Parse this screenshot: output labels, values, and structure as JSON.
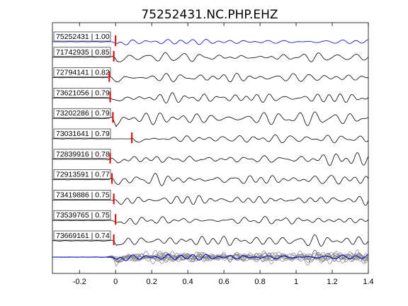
{
  "chart_data": {
    "type": "line",
    "title": "75252431.NC.PHP.EHZ",
    "xlabel": "",
    "ylabel": "",
    "xlim": [
      -0.35,
      1.4
    ],
    "xticks": [
      -0.2,
      0,
      0.2,
      0.4,
      0.6,
      0.8,
      1,
      1.2,
      1.4
    ],
    "xtick_labels": [
      "-0.2",
      "0",
      "0.2",
      "0.4",
      "0.6",
      "0.8",
      "1",
      "1.2",
      "1.4"
    ],
    "grid": false,
    "pick_color": "#dd0000",
    "reference_color": "#0000cc",
    "trace_color": "#000000",
    "stack_color": "#808080",
    "traces": [
      {
        "label": "75252431 | 1.00",
        "id": "75252431",
        "corr": 1.0,
        "pick": 0.0,
        "reference": true
      },
      {
        "label": "71742935 | 0.85",
        "id": "71742935",
        "corr": 0.85,
        "pick": -0.01
      },
      {
        "label": "72794141 | 0.82",
        "id": "72794141",
        "corr": 0.82,
        "pick": -0.035
      },
      {
        "label": "73621056 | 0.79",
        "id": "73621056",
        "corr": 0.79,
        "pick": -0.03
      },
      {
        "label": "73202286 | 0.79",
        "id": "73202286",
        "corr": 0.79,
        "pick": -0.015
      },
      {
        "label": "73031641 | 0.79",
        "id": "73031641",
        "corr": 0.79,
        "pick": 0.09
      },
      {
        "label": "72839916 | 0.78",
        "id": "72839916",
        "corr": 0.78,
        "pick": -0.03
      },
      {
        "label": "72913591 | 0.77",
        "id": "72913591",
        "corr": 0.77,
        "pick": -0.02
      },
      {
        "label": "73419886 | 0.75",
        "id": "73419886",
        "corr": 0.75,
        "pick": -0.01
      },
      {
        "label": "73539765 | 0.75",
        "id": "73539765",
        "corr": 0.75,
        "pick": 0.0
      },
      {
        "label": "73669161 | 0.74",
        "id": "73669161",
        "corr": 0.74,
        "pick": -0.01
      }
    ],
    "stack": {
      "description_visible": false
    }
  }
}
